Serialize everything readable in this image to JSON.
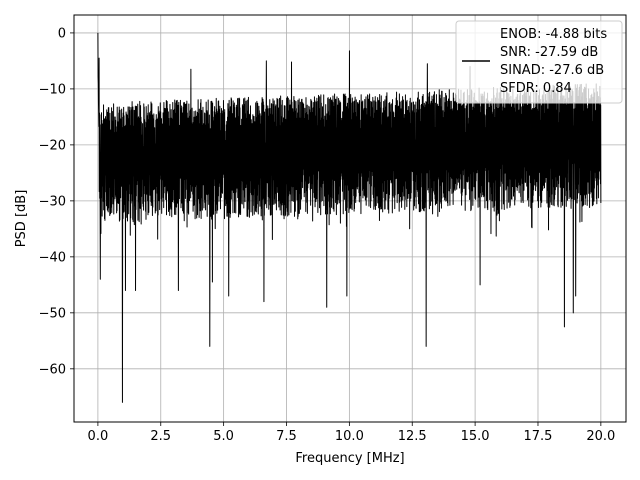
{
  "chart_data": {
    "type": "line",
    "title": "",
    "xlabel": "Frequency [MHz]",
    "ylabel": "PSD [dB]",
    "xlim": [
      -0.95,
      21.0
    ],
    "ylim": [
      -69.5,
      3.2
    ],
    "xticks": [
      0.0,
      2.5,
      5.0,
      7.5,
      10.0,
      12.5,
      15.0,
      17.5,
      20.0
    ],
    "xtick_labels": [
      "0.0",
      "2.5",
      "5.0",
      "7.5",
      "10.0",
      "12.5",
      "15.0",
      "17.5",
      "20.0"
    ],
    "yticks": [
      0,
      -10,
      -20,
      -30,
      -40,
      -50,
      -60
    ],
    "ytick_labels": [
      "0",
      "−10",
      "−20",
      "−30",
      "−40",
      "−50",
      "−60"
    ],
    "grid": true,
    "legend_position": "top-right",
    "legend_lines": [
      "ENOB: -4.88 bits",
      "SNR: -27.59 dB",
      "SINAD: -27.6 dB",
      "SFDR: 0.84"
    ],
    "line_color": "#000000",
    "series": [
      {
        "x_range": [
          0.0,
          20.0
        ],
        "n_points": 2500,
        "noise_floor_db": -21.5,
        "upper_envelope_db": [
          -12.5,
          -9.0
        ],
        "lower_typical_db": [
          -34.0,
          -31.0
        ],
        "peaks": [
          {
            "x": 0.0,
            "y": 0.0
          },
          {
            "x": 0.05,
            "y": -4.5
          },
          {
            "x": 3.7,
            "y": -6.5
          },
          {
            "x": 6.7,
            "y": -5.0
          },
          {
            "x": 7.7,
            "y": -5.2
          },
          {
            "x": 10.0,
            "y": -3.2
          },
          {
            "x": 13.1,
            "y": -5.5
          },
          {
            "x": 14.8,
            "y": -6.0
          },
          {
            "x": 15.2,
            "y": -5.8
          }
        ],
        "dips": [
          {
            "x": 0.1,
            "y": -44.0
          },
          {
            "x": 0.98,
            "y": -66.0
          },
          {
            "x": 1.1,
            "y": -46.0
          },
          {
            "x": 1.5,
            "y": -46.0
          },
          {
            "x": 3.2,
            "y": -46.0
          },
          {
            "x": 4.45,
            "y": -56.0
          },
          {
            "x": 4.55,
            "y": -44.5
          },
          {
            "x": 5.2,
            "y": -47.0
          },
          {
            "x": 6.6,
            "y": -48.0
          },
          {
            "x": 9.1,
            "y": -49.0
          },
          {
            "x": 9.9,
            "y": -47.0
          },
          {
            "x": 13.05,
            "y": -56.0
          },
          {
            "x": 15.2,
            "y": -45.0
          },
          {
            "x": 18.55,
            "y": -52.5
          },
          {
            "x": 18.9,
            "y": -50.0
          },
          {
            "x": 19.0,
            "y": -47.0
          }
        ]
      }
    ]
  }
}
